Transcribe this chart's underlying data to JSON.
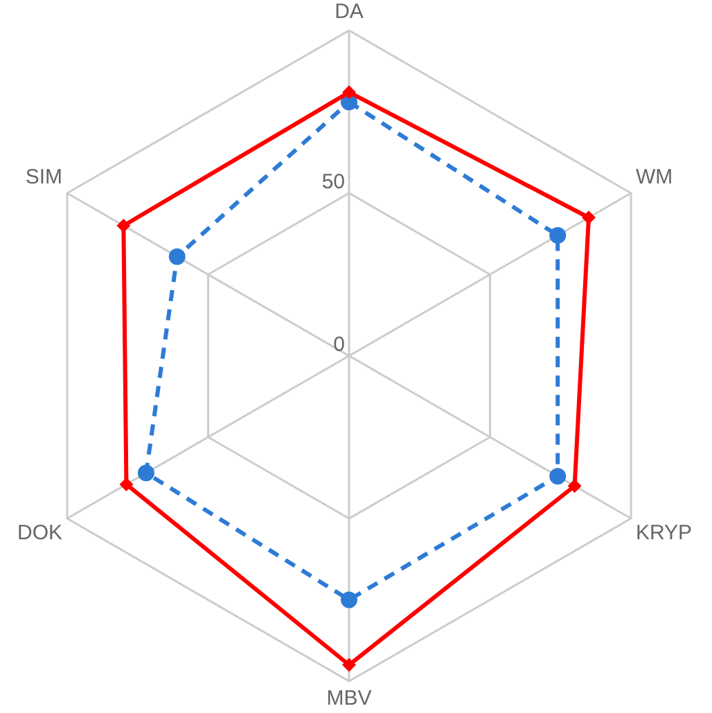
{
  "chart_data": {
    "type": "radar",
    "categories": [
      "DA",
      "WM",
      "KRYP",
      "MBV",
      "DOK",
      "SIM"
    ],
    "ylim": [
      0,
      100
    ],
    "yticks": [
      0,
      50
    ],
    "grid": true,
    "legend": false,
    "series": [
      {
        "color": "#ff0000",
        "values": [
          81,
          85,
          80,
          95,
          79,
          80
        ],
        "marker": "diamond",
        "line_style": "solid"
      },
      {
        "color": "#2e7bd6",
        "values": [
          78,
          74,
          74,
          75,
          72,
          61
        ],
        "marker": "circle",
        "line_style": "dashed"
      }
    ]
  }
}
